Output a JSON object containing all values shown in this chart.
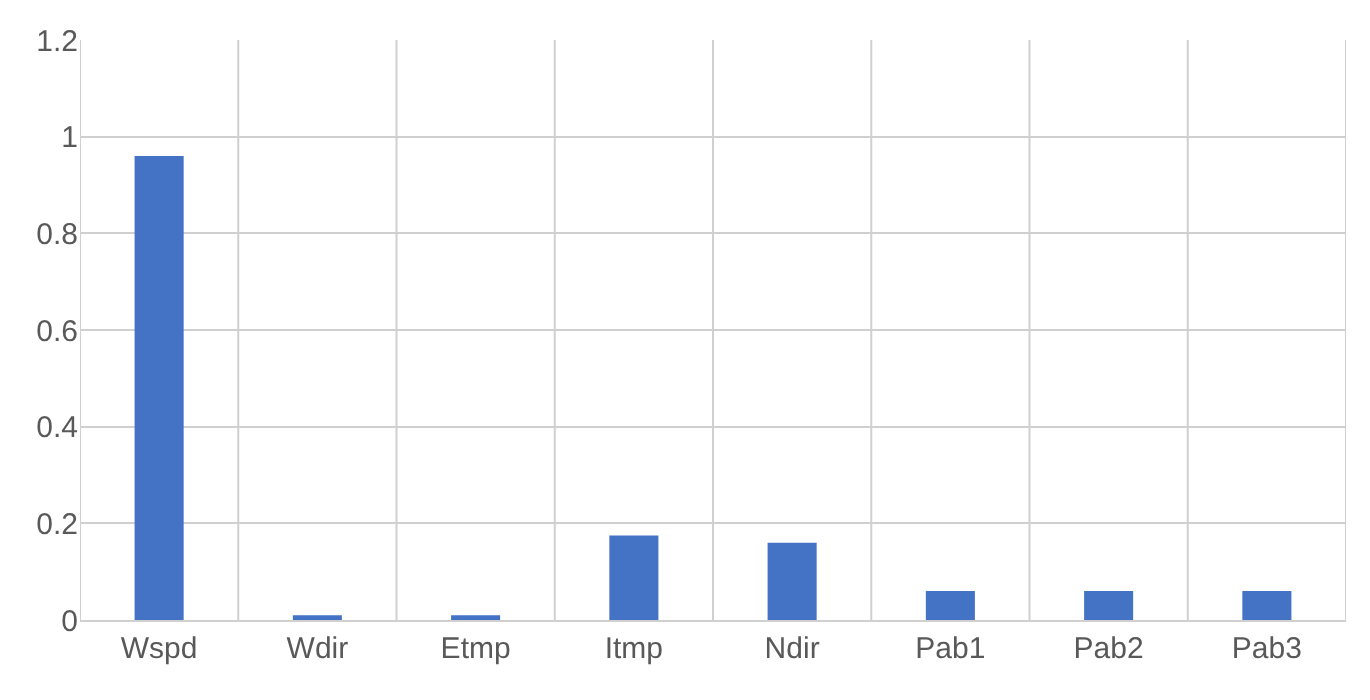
{
  "chart_data": {
    "type": "bar",
    "categories": [
      "Wspd",
      "Wdir",
      "Etmp",
      "Itmp",
      "Ndir",
      "Pab1",
      "Pab2",
      "Pab3"
    ],
    "values": [
      0.96,
      0.01,
      0.01,
      0.175,
      0.16,
      0.06,
      0.06,
      0.06
    ],
    "color": "#4472c4",
    "ylim": [
      0,
      1.2
    ],
    "yticks": [
      0,
      0.2,
      0.4,
      0.6,
      0.8,
      1,
      1.2
    ],
    "grid": true
  }
}
